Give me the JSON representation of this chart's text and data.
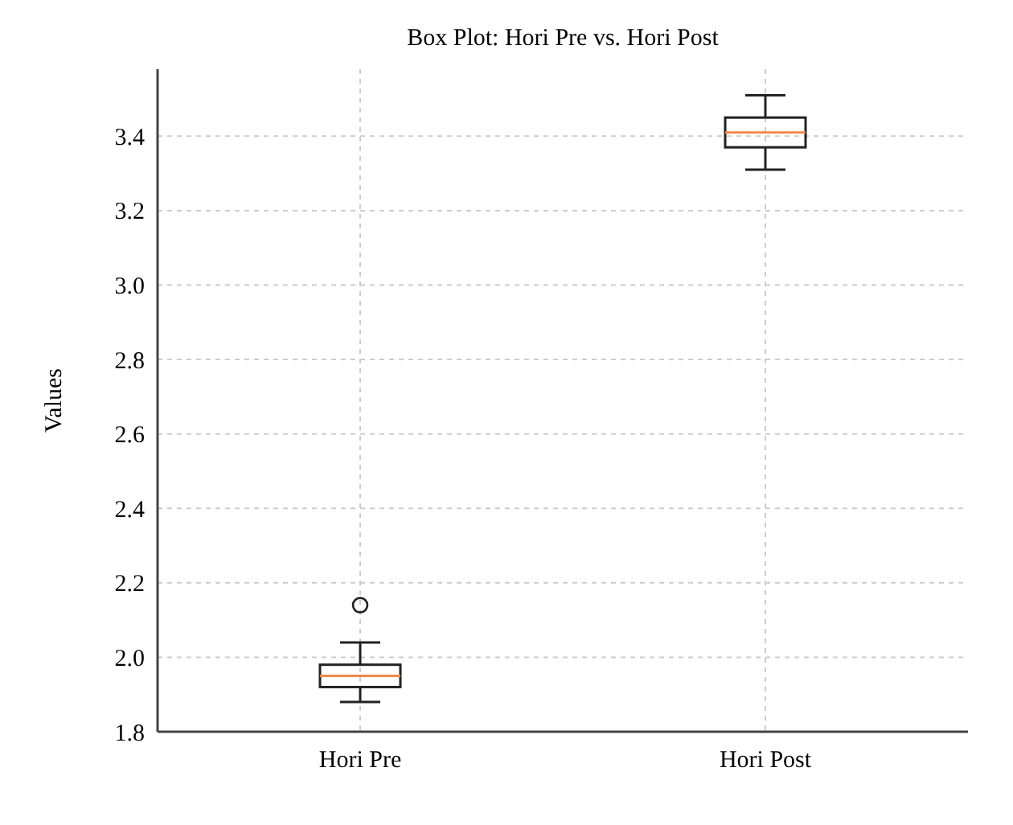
{
  "chart_data": {
    "type": "box",
    "title": "Box Plot: Hori Pre vs. Hori Post",
    "ylabel": "Values",
    "categories": [
      "Hori Pre",
      "Hori Post"
    ],
    "boxes": [
      {
        "low": 1.88,
        "q1": 1.92,
        "median": 1.95,
        "q3": 1.98,
        "high": 2.04,
        "outliers": [
          2.14
        ]
      },
      {
        "low": 3.31,
        "q1": 3.37,
        "median": 3.41,
        "q3": 3.45,
        "high": 3.51
      }
    ],
    "color": "#222222",
    "ylim": [
      1.8,
      3.58
    ],
    "yticks": [
      {
        "value": 1.8,
        "label": "1.8"
      },
      {
        "value": 2.0,
        "label": "2.0"
      },
      {
        "value": 2.2,
        "label": "2.2"
      },
      {
        "value": 2.4,
        "label": "2.4"
      },
      {
        "value": 2.6,
        "label": "2.6"
      },
      {
        "value": 2.8,
        "label": "2.8"
      },
      {
        "value": 3.0,
        "label": "3.0"
      },
      {
        "value": 3.2,
        "label": "3.2"
      },
      {
        "value": 3.4,
        "label": "3.4"
      }
    ],
    "grid": true
  }
}
